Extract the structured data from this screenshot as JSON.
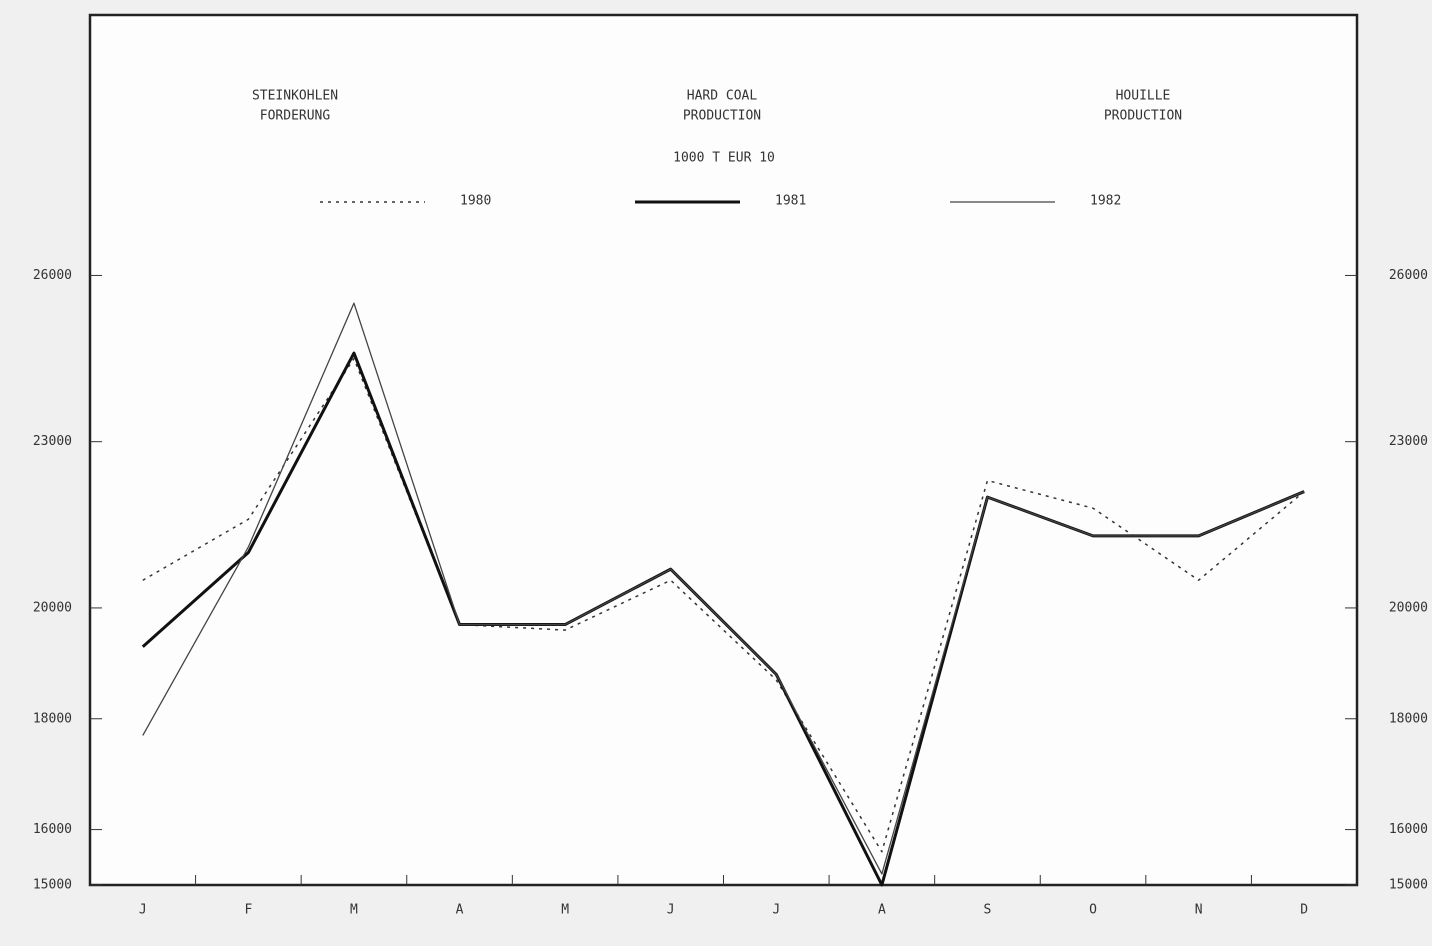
{
  "chart_data": {
    "type": "line",
    "titles": [
      [
        "STEINKOHLEN",
        "FORDERUNG"
      ],
      [
        "HARD COAL",
        "PRODUCTION"
      ],
      [
        "HOUILLE",
        "PRODUCTION"
      ]
    ],
    "subtitle": "1000 T   EUR 10",
    "categories": [
      "J",
      "F",
      "M",
      "A",
      "M",
      "J",
      "J",
      "A",
      "S",
      "O",
      "N",
      "D"
    ],
    "series": [
      {
        "name": "1980",
        "color": "#333333",
        "style": "dotted",
        "values": [
          20500,
          21600,
          24500,
          19700,
          19600,
          20500,
          18700,
          15600,
          22300,
          21800,
          20500,
          22100
        ]
      },
      {
        "name": "1981",
        "color": "#111111",
        "style": "thick",
        "values": [
          19300,
          21000,
          24600,
          19700,
          19700,
          20700,
          18800,
          15000,
          22000,
          21300,
          21300,
          22100
        ]
      },
      {
        "name": "1982",
        "color": "#444444",
        "style": "thin",
        "values": [
          17700,
          21100,
          25500,
          19700,
          19700,
          20700,
          18800,
          15200,
          22000,
          21300,
          21300,
          22100
        ]
      }
    ],
    "ylim": [
      15000,
      30700
    ],
    "yticks": [
      15000,
      16000,
      18000,
      20000,
      23000,
      26000
    ]
  }
}
